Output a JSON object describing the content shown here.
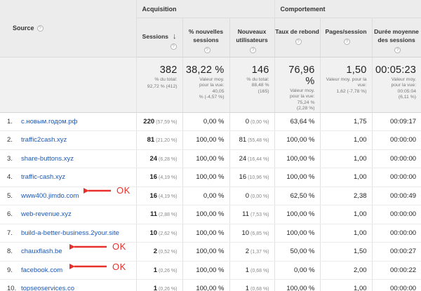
{
  "header": {
    "source_label": "Source",
    "acquisition_label": "Acquisition",
    "behavior_label": "Comportement",
    "columns": {
      "sessions": "Sessions",
      "pct_new_sessions": "% nouvelles sessions",
      "new_users": "Nouveaux utilisateurs",
      "bounce_rate": "Taux de rebond",
      "pages_per_session": "Pages/session",
      "avg_duration": "Durée moyenne des sessions"
    },
    "help_glyph": "?",
    "sort_glyph": "↓"
  },
  "totals": {
    "sessions": {
      "value": "382",
      "line1": "% du total:",
      "line2": "92,72 % (412)"
    },
    "pct_new_sessions": {
      "value": "38,22 %",
      "line1": "Valeur moy.",
      "line2": "pour la vue:",
      "line3": "40,05",
      "line4": "% (-4,57 %)"
    },
    "new_users": {
      "value": "146",
      "line1": "% du total:",
      "line2": "88,48 %",
      "line3": "(165)"
    },
    "bounce_rate": {
      "value": "76,96 %",
      "line1": "Valeur moy.",
      "line2": "pour la vue:",
      "line3": "75,24 %",
      "line4": "(2,28 %)"
    },
    "pages_per_session": {
      "value": "1,50",
      "line1": "Valeur moy. pour la vue:",
      "line2": "1,62 (-7,78 %)"
    },
    "avg_duration": {
      "value": "00:05:23",
      "line1": "Valeur moy.",
      "line2": "pour la vue:",
      "line3": "00:05:04",
      "line4": "(6,11 %)"
    }
  },
  "rows": [
    {
      "rank": "1.",
      "source": "с.новым.годом.рф",
      "sessions": "220",
      "sessions_pct": "(57,59 %)",
      "pct_new": "0,00 %",
      "new_users": "0",
      "new_users_pct": "(0,00 %)",
      "bounce": "63,64 %",
      "pps": "1,75",
      "duration": "00:09:17"
    },
    {
      "rank": "2.",
      "source": "traffic2cash.xyz",
      "sessions": "81",
      "sessions_pct": "(21,20 %)",
      "pct_new": "100,00 %",
      "new_users": "81",
      "new_users_pct": "(55,48 %)",
      "bounce": "100,00 %",
      "pps": "1,00",
      "duration": "00:00:00"
    },
    {
      "rank": "3.",
      "source": "share-buttons.xyz",
      "sessions": "24",
      "sessions_pct": "(6,28 %)",
      "pct_new": "100,00 %",
      "new_users": "24",
      "new_users_pct": "(16,44 %)",
      "bounce": "100,00 %",
      "pps": "1,00",
      "duration": "00:00:00"
    },
    {
      "rank": "4.",
      "source": "traffic-cash.xyz",
      "sessions": "16",
      "sessions_pct": "(4,19 %)",
      "pct_new": "100,00 %",
      "new_users": "16",
      "new_users_pct": "(10,96 %)",
      "bounce": "100,00 %",
      "pps": "1,00",
      "duration": "00:00:00"
    },
    {
      "rank": "5.",
      "source": "www400.jimdo.com",
      "sessions": "16",
      "sessions_pct": "(4,19 %)",
      "pct_new": "0,00 %",
      "new_users": "0",
      "new_users_pct": "(0,00 %)",
      "bounce": "62,50 %",
      "pps": "2,38",
      "duration": "00:00:49"
    },
    {
      "rank": "6.",
      "source": "web-revenue.xyz",
      "sessions": "11",
      "sessions_pct": "(2,88 %)",
      "pct_new": "100,00 %",
      "new_users": "11",
      "new_users_pct": "(7,53 %)",
      "bounce": "100,00 %",
      "pps": "1,00",
      "duration": "00:00:00"
    },
    {
      "rank": "7.",
      "source": "build-a-better-business.2your.site",
      "sessions": "10",
      "sessions_pct": "(2,62 %)",
      "pct_new": "100,00 %",
      "new_users": "10",
      "new_users_pct": "(6,85 %)",
      "bounce": "100,00 %",
      "pps": "1,00",
      "duration": "00:00:00"
    },
    {
      "rank": "8.",
      "source": "chauxflash.be",
      "sessions": "2",
      "sessions_pct": "(0,52 %)",
      "pct_new": "100,00 %",
      "new_users": "2",
      "new_users_pct": "(1,37 %)",
      "bounce": "50,00 %",
      "pps": "1,50",
      "duration": "00:00:27"
    },
    {
      "rank": "9.",
      "source": "facebook.com",
      "sessions": "1",
      "sessions_pct": "(0,26 %)",
      "pct_new": "100,00 %",
      "new_users": "1",
      "new_users_pct": "(0,68 %)",
      "bounce": "0,00 %",
      "pps": "2,00",
      "duration": "00:00:22"
    },
    {
      "rank": "10.",
      "source": "topseoservices.co",
      "sessions": "1",
      "sessions_pct": "(0,26 %)",
      "pct_new": "100,00 %",
      "new_users": "1",
      "new_users_pct": "(0,68 %)",
      "bounce": "100,00 %",
      "pps": "1,00",
      "duration": "00:00:00"
    }
  ],
  "annotations": [
    {
      "label": "OK",
      "row_rank": "5."
    },
    {
      "label": "OK",
      "row_rank": "8."
    },
    {
      "label": "OK",
      "row_rank": "9."
    }
  ],
  "colors": {
    "link": "#1a58b6",
    "annotation": "#e8302a",
    "header_bg": "#ececec",
    "totals_bg": "#f1f1f1"
  }
}
